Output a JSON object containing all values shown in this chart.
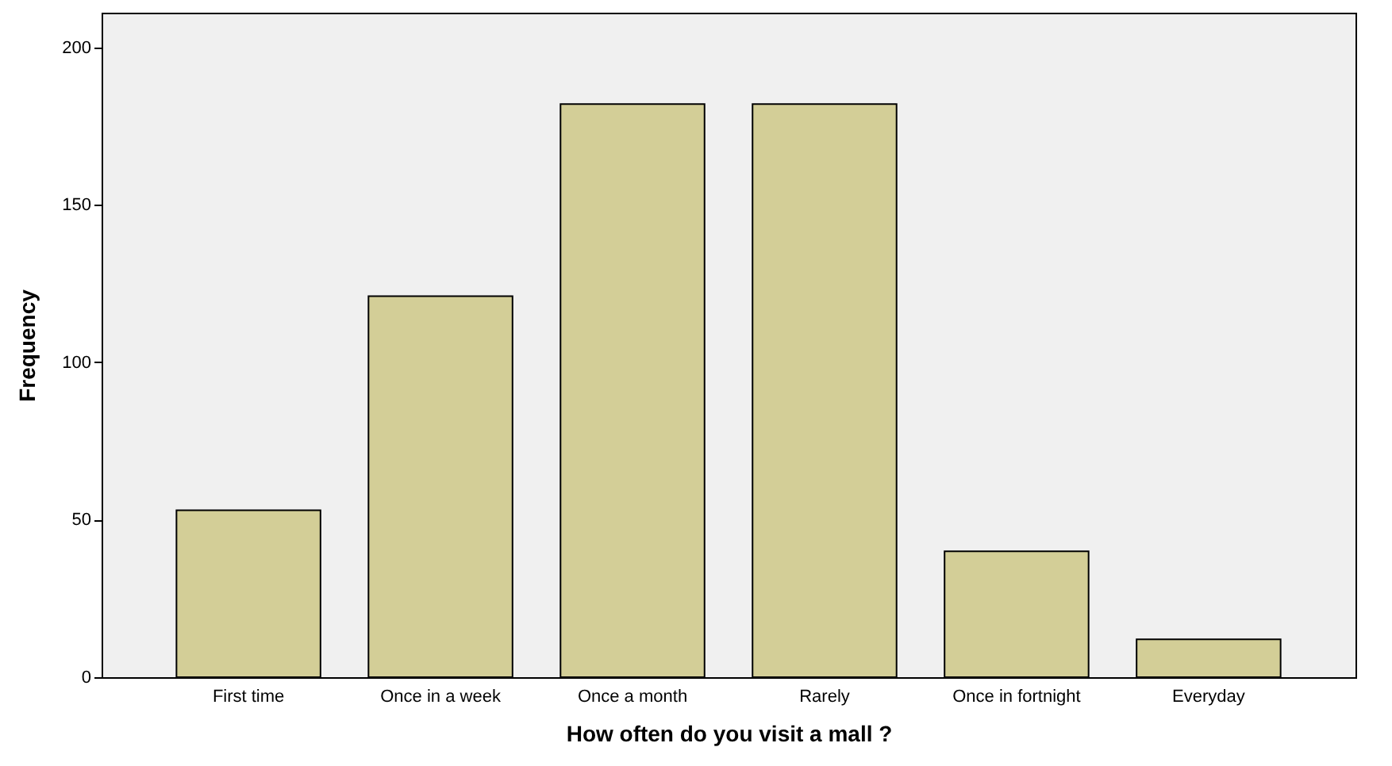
{
  "chart_data": {
    "type": "bar",
    "xlabel": "How often do you visit a mall ?",
    "ylabel": "Frequency",
    "categories": [
      "First time",
      "Once in a week",
      "Once a month",
      "Rarely",
      "Once in fortnight",
      "Everyday"
    ],
    "values": [
      53,
      121,
      182,
      182,
      40,
      12
    ],
    "color": "#d3ce97",
    "ylim": [
      0,
      211
    ],
    "yticks": [
      0,
      50,
      100,
      150,
      200
    ],
    "grid": false
  }
}
